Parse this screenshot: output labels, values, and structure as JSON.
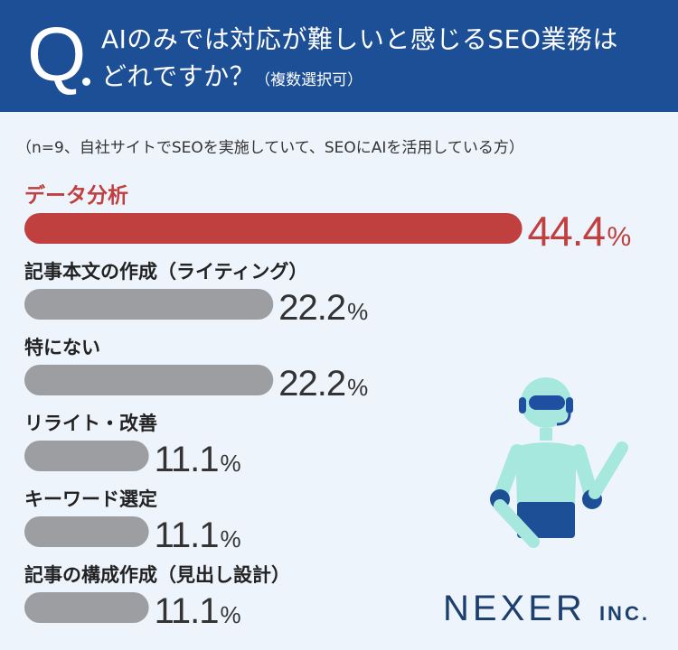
{
  "header": {
    "q_mark": "Q",
    "line1": "AIのみでは対応が難しいと感じるSEO業務は",
    "line2": "どれですか？",
    "note": "（複数選択可）"
  },
  "sample_note": "（n=9、自社サイトでSEOを実施していて、SEOにAIを活用している方）",
  "brand": {
    "name": "NEXER",
    "suffix": "INC."
  },
  "colors": {
    "header": "#1c4f96",
    "highlight": "#c0403f",
    "bar": "#9d9ea2",
    "value_text": "#333333",
    "background": "#eef4fc"
  },
  "chart_data": {
    "type": "bar",
    "orientation": "horizontal",
    "categories": [
      "データ分析",
      "記事本文の作成（ライティング）",
      "特にない",
      "リライト・改善",
      "キーワード選定",
      "記事の構成作成（見出し設計）"
    ],
    "values": [
      44.4,
      22.2,
      22.2,
      11.1,
      11.1,
      11.1
    ],
    "value_labels": [
      "44.4",
      "22.2",
      "22.2",
      "11.1",
      "11.1",
      "11.1"
    ],
    "unit": "%",
    "highlight_index": 0,
    "xlim": [
      0,
      50
    ]
  }
}
